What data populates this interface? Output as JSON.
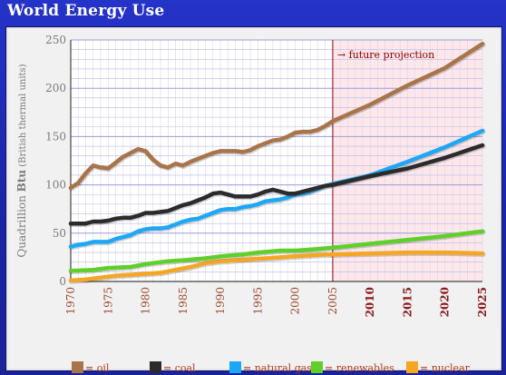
{
  "title": "World Energy Use",
  "chart_data": {
    "type": "line",
    "ylabel_prefix": "Quadrillion ",
    "ylabel_bold": "Btu",
    "ylabel_suffix": " (British thermal units)",
    "xlim": [
      1970,
      2025
    ],
    "ylim": [
      0,
      250
    ],
    "y_ticks": [
      0,
      50,
      100,
      150,
      200,
      250
    ],
    "x_ticks": [
      1970,
      1975,
      1980,
      1985,
      1990,
      1995,
      2000,
      2005,
      2010,
      2015,
      2020,
      2025
    ],
    "projection_start": 2005,
    "projection_label": "future projection",
    "projection_arrow": "→",
    "colors": {
      "oil": "#a8744a",
      "coal": "#2b2b2b",
      "natural_gas": "#1ea7f5",
      "renewables": "#5fcf2a",
      "nuclear": "#f5a623",
      "history_tick": "#9a4a2e",
      "projection_tick": "#8b1a1a",
      "projection_line": "#8b0000",
      "grid_h": "#b9b9e6",
      "grid_v": "#d6d6f0",
      "shade": "#fde7ea",
      "axis_text": "#7a7a7a"
    },
    "series": [
      {
        "name": "oil",
        "key": "oil",
        "x": [
          1970,
          1971,
          1972,
          1973,
          1974,
          1975,
          1976,
          1977,
          1978,
          1979,
          1980,
          1981,
          1982,
          1983,
          1984,
          1985,
          1986,
          1987,
          1988,
          1989,
          1990,
          1991,
          1992,
          1993,
          1994,
          1995,
          1996,
          1997,
          1998,
          1999,
          2000,
          2001,
          2002,
          2003,
          2004,
          2005,
          2010,
          2015,
          2020,
          2025
        ],
        "y": [
          97,
          102,
          112,
          120,
          118,
          117,
          123,
          129,
          133,
          137,
          135,
          126,
          120,
          118,
          122,
          120,
          124,
          127,
          130,
          133,
          135,
          135,
          135,
          134,
          136,
          140,
          143,
          146,
          147,
          150,
          154,
          155,
          155,
          157,
          161,
          166,
          183,
          203,
          221,
          246
        ]
      },
      {
        "name": "coal",
        "key": "coal",
        "x": [
          1970,
          1971,
          1972,
          1973,
          1974,
          1975,
          1976,
          1977,
          1978,
          1979,
          1980,
          1981,
          1982,
          1983,
          1984,
          1985,
          1986,
          1987,
          1988,
          1989,
          1990,
          1991,
          1992,
          1993,
          1994,
          1995,
          1996,
          1997,
          1998,
          1999,
          2000,
          2001,
          2002,
          2003,
          2004,
          2005,
          2010,
          2015,
          2020,
          2025
        ],
        "y": [
          60,
          60,
          60,
          62,
          62,
          63,
          65,
          66,
          66,
          68,
          71,
          71,
          72,
          73,
          76,
          79,
          81,
          84,
          87,
          91,
          92,
          90,
          88,
          88,
          88,
          90,
          93,
          95,
          93,
          91,
          91,
          93,
          95,
          97,
          99,
          100,
          109,
          117,
          128,
          141
        ]
      },
      {
        "name": "natural gas",
        "key": "natural_gas",
        "x": [
          1970,
          1971,
          1972,
          1973,
          1974,
          1975,
          1976,
          1977,
          1978,
          1979,
          1980,
          1981,
          1982,
          1983,
          1984,
          1985,
          1986,
          1987,
          1988,
          1989,
          1990,
          1991,
          1992,
          1993,
          1994,
          1995,
          1996,
          1997,
          1998,
          1999,
          2000,
          2001,
          2002,
          2003,
          2004,
          2005,
          2010,
          2015,
          2020,
          2025
        ],
        "y": [
          36,
          38,
          39,
          41,
          41,
          41,
          44,
          46,
          48,
          52,
          54,
          55,
          55,
          56,
          59,
          62,
          64,
          65,
          68,
          71,
          74,
          75,
          75,
          77,
          78,
          80,
          83,
          84,
          85,
          87,
          90,
          91,
          93,
          96,
          99,
          101,
          110,
          124,
          139,
          156
        ]
      },
      {
        "name": "renewables",
        "key": "renewables",
        "x": [
          1970,
          1973,
          1975,
          1978,
          1980,
          1983,
          1985,
          1988,
          1990,
          1993,
          1995,
          1998,
          2000,
          2002,
          2005,
          2010,
          2015,
          2020,
          2025
        ],
        "y": [
          11,
          12,
          14,
          15,
          18,
          21,
          22,
          24,
          26,
          28,
          30,
          32,
          32,
          33,
          35,
          39,
          43,
          47,
          52
        ]
      },
      {
        "name": "nuclear",
        "key": "nuclear",
        "x": [
          1970,
          1972,
          1974,
          1976,
          1978,
          1980,
          1982,
          1984,
          1986,
          1988,
          1990,
          1992,
          1994,
          1996,
          1998,
          2000,
          2002,
          2004,
          2005,
          2010,
          2015,
          2020,
          2025
        ],
        "y": [
          1,
          2,
          4,
          6,
          7,
          8,
          9,
          12,
          15,
          19,
          21,
          22,
          23,
          24,
          25,
          26,
          27,
          28,
          28,
          29,
          30,
          30,
          29
        ]
      }
    ],
    "legend": [
      {
        "key": "oil",
        "label": "= oil"
      },
      {
        "key": "coal",
        "label": "= coal"
      },
      {
        "key": "natural_gas",
        "label": "= natural gas"
      },
      {
        "key": "renewables",
        "label": "= renewables"
      },
      {
        "key": "nuclear",
        "label": "= nuclear"
      }
    ]
  }
}
